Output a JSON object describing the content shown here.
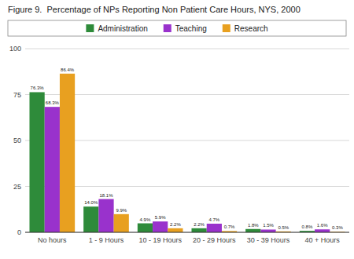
{
  "chart_data": {
    "type": "bar",
    "title": "Figure 9.  Percentage of NPs Reporting Non Patient Care Hours, NYS, 2000",
    "categories": [
      "No hours",
      "1 - 9 Hours",
      "10 - 19 Hours",
      "20 - 29 Hours",
      "30 - 39 Hours",
      "40 + Hours"
    ],
    "series": [
      {
        "name": "Administration",
        "color": "#2e8b3a",
        "values": [
          76.3,
          14.0,
          4.9,
          2.2,
          1.8,
          0.8
        ],
        "value_labels": [
          "76.3%",
          "14.0%",
          "4.9%",
          "2.2%",
          "1.8%",
          "0.8%"
        ]
      },
      {
        "name": "Teaching",
        "color": "#9932cc",
        "values": [
          68.3,
          18.1,
          5.9,
          4.7,
          1.5,
          1.6
        ],
        "value_labels": [
          "68.3%",
          "18.1%",
          "5.9%",
          "4.7%",
          "1.5%",
          "1.6%"
        ]
      },
      {
        "name": "Research",
        "color": "#e8a020",
        "values": [
          86.4,
          9.9,
          2.2,
          0.7,
          0.5,
          0.3
        ],
        "value_labels": [
          "86.4%",
          "9.9%",
          "2.2%",
          "0.7%",
          "0.5%",
          "0.3%"
        ]
      }
    ],
    "ylim": [
      0,
      100
    ],
    "yticks": [
      0,
      25,
      50,
      75,
      100
    ],
    "grid": true,
    "legend": "top",
    "data_labels": true
  }
}
